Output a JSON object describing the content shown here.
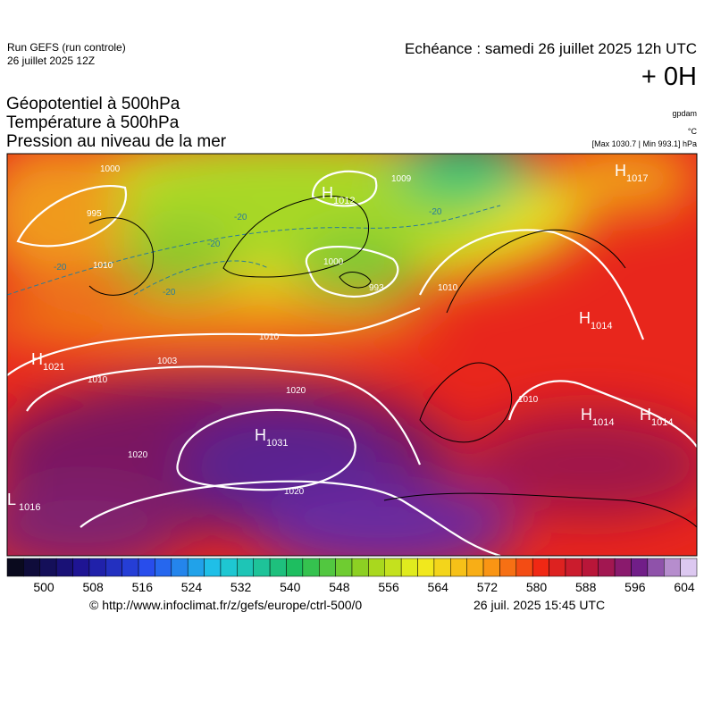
{
  "header": {
    "run": "Run GEFS (run controle)",
    "run_date": "26 juillet 2025 12Z",
    "valid": "Echéance : samedi 26 juillet 2025 12h UTC",
    "lead": "+ 0H"
  },
  "titles": [
    "Géopotentiel à 500hPa",
    "Température à 500hPa",
    "Pression au niveau de la mer"
  ],
  "units": [
    "gpdam",
    "°C",
    "[Max 1030.7 | Min 993.1] hPa"
  ],
  "pressure_centers": [
    {
      "kind": "H",
      "value": "1012"
    },
    {
      "kind": "H",
      "value": "1017"
    },
    {
      "kind": "H",
      "value": "1014"
    },
    {
      "kind": "H",
      "value": "1021"
    },
    {
      "kind": "H",
      "value": "1031"
    },
    {
      "kind": "H",
      "value": "1014"
    },
    {
      "kind": "H",
      "value": "1014"
    },
    {
      "kind": "L",
      "value": "1016"
    }
  ],
  "isobar_labels": [
    "1000",
    "995",
    "1010",
    "1003",
    "993",
    "1009",
    "1000",
    "1010",
    "1020",
    "1020",
    "1020",
    "1010",
    "1010",
    "1010"
  ],
  "temperature_labels": [
    "-20",
    "-20",
    "-20",
    "-20",
    "-20"
  ],
  "colorbar_ticks": [
    500,
    508,
    516,
    524,
    532,
    540,
    548,
    556,
    564,
    572,
    580,
    588,
    596,
    604
  ],
  "footer": {
    "source": "© http://www.infoclimat.fr/z/gefs/europe/ctrl-500/0",
    "generated": "26 juil. 2025 15:45 UTC"
  }
}
